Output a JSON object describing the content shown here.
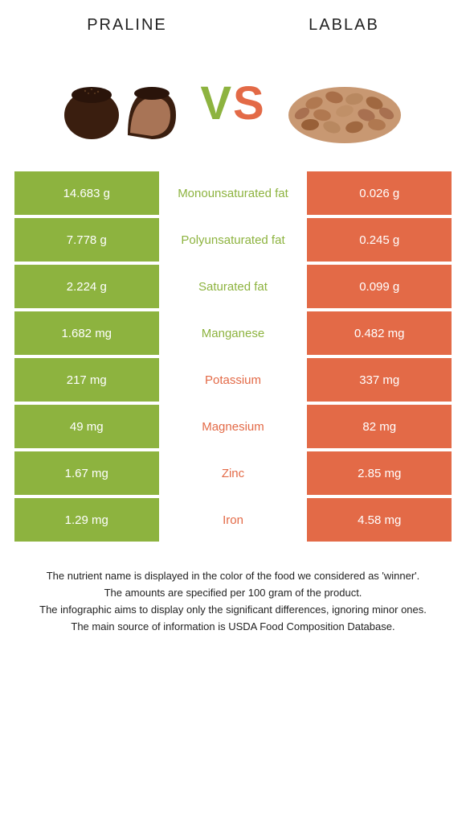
{
  "food_left": {
    "name": "Praline",
    "color": "#8db33f"
  },
  "food_right": {
    "name": "Lablab",
    "color": "#e36a47"
  },
  "vs": {
    "v": "V",
    "s": "S"
  },
  "rows": [
    {
      "left": "14.683 g",
      "label": "Monounsaturated fat",
      "right": "0.026 g",
      "winner": "left"
    },
    {
      "left": "7.778 g",
      "label": "Polyunsaturated fat",
      "right": "0.245 g",
      "winner": "left"
    },
    {
      "left": "2.224 g",
      "label": "Saturated fat",
      "right": "0.099 g",
      "winner": "left"
    },
    {
      "left": "1.682 mg",
      "label": "Manganese",
      "right": "0.482 mg",
      "winner": "left"
    },
    {
      "left": "217 mg",
      "label": "Potassium",
      "right": "337 mg",
      "winner": "right"
    },
    {
      "left": "49 mg",
      "label": "Magnesium",
      "right": "82 mg",
      "winner": "right"
    },
    {
      "left": "1.67 mg",
      "label": "Zinc",
      "right": "2.85 mg",
      "winner": "right"
    },
    {
      "left": "1.29 mg",
      "label": "Iron",
      "right": "4.58 mg",
      "winner": "right"
    }
  ],
  "footer": {
    "l1": "The nutrient name is displayed in the color of the food we considered as 'winner'.",
    "l2": "The amounts are specified per 100 gram of the product.",
    "l3": "The infographic aims to display only the significant differences, ignoring minor ones.",
    "l4": "The main source of information is USDA Food Composition Database."
  },
  "colors": {
    "left_bg": "#8db33f",
    "right_bg": "#e36a47",
    "mid_bg": "#ffffff"
  }
}
